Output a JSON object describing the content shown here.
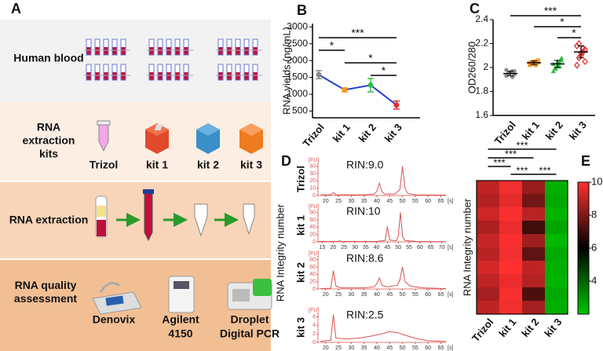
{
  "panel_labels": [
    "A",
    "B",
    "C",
    "D",
    "E"
  ],
  "workflow": {
    "rows": [
      {
        "label_lines": [
          "Human blood"
        ]
      },
      {
        "label_lines": [
          "RNA",
          "extraction",
          "kits"
        ],
        "items": [
          [
            "Trizol"
          ],
          [
            "kit 1"
          ],
          [
            "kit 2"
          ],
          [
            "kit 3"
          ]
        ]
      },
      {
        "label_lines": [
          "RNA extraction"
        ]
      },
      {
        "label_lines": [
          "RNA quality",
          "assessment"
        ],
        "items": [
          [
            "Denovix"
          ],
          [
            "Agilent",
            "4150"
          ],
          [
            "Droplet",
            "Digital PCR"
          ]
        ]
      }
    ]
  },
  "chart_data": [
    {
      "type": "line",
      "ylabel": "RNA yields (ng/mL)",
      "categories": [
        "Trizol",
        "kit 1",
        "kit 2",
        "kit 3"
      ],
      "values": [
        1580,
        1130,
        1270,
        680
      ],
      "errors": [
        120,
        60,
        200,
        120
      ],
      "color": "#1f3fd0",
      "point_colors": [
        "#8a8a8a",
        "#f39a1e",
        "#2ec040",
        "#e03030"
      ],
      "ylim": [
        300,
        3100
      ],
      "yticks": [
        500,
        1000,
        1500,
        2000,
        2500,
        3000
      ],
      "significance": [
        {
          "pair": [
            0,
            3
          ],
          "label": "***"
        },
        {
          "pair": [
            0,
            1
          ],
          "label": "*"
        },
        {
          "pair": [
            1,
            3
          ],
          "label": "*"
        },
        {
          "pair": [
            2,
            3
          ],
          "label": "*"
        }
      ]
    },
    {
      "type": "strip",
      "ylabel": "OD260/280",
      "categories": [
        "Trizol",
        "kit 1",
        "kit 2",
        "kit 3"
      ],
      "values": [
        [
          1.93,
          1.95,
          1.96,
          1.97,
          1.94,
          1.98,
          1.95,
          1.96,
          1.92,
          1.97
        ],
        [
          2.02,
          2.04,
          2.05,
          2.03,
          2.06,
          2.04,
          2.03,
          2.05,
          2.02,
          2.04
        ],
        [
          1.97,
          2.0,
          2.02,
          2.04,
          2.06,
          2.03,
          1.99,
          2.05,
          2.01,
          2.08
        ],
        [
          2.02,
          2.08,
          2.1,
          2.13,
          2.15,
          2.18,
          2.2,
          2.12,
          2.16,
          2.05
        ]
      ],
      "means": [
        1.95,
        2.04,
        2.03,
        2.13
      ],
      "sds": [
        0.02,
        0.015,
        0.03,
        0.05
      ],
      "colors": [
        "#8a8a8a",
        "#f39a1e",
        "#2ec040",
        "#e03030"
      ],
      "markers": [
        "circle",
        "square",
        "triangle",
        "diamond"
      ],
      "ylim": [
        1.6,
        2.4
      ],
      "yticks": [
        1.6,
        1.8,
        2.0,
        2.2,
        2.4
      ],
      "significance": [
        {
          "pair": [
            0,
            3
          ],
          "label": "***"
        },
        {
          "pair": [
            1,
            3
          ],
          "label": "*"
        },
        {
          "pair": [
            2,
            3
          ],
          "label": "*"
        }
      ]
    },
    {
      "type": "electropherogram",
      "ylabel": "RNA Integrity number",
      "y_unit": "[FU]",
      "x_unit": "[s]",
      "color": "#d9534f",
      "panels": [
        {
          "name": "Trizol",
          "rin": "RIN:9.0",
          "xlim": [
            17,
            67
          ],
          "ylim": [
            0,
            45
          ],
          "xticks": [
            20,
            25,
            30,
            35,
            40,
            45,
            50,
            55,
            60,
            65
          ],
          "yticks": [
            0,
            10,
            20,
            30,
            40
          ],
          "x": [
            18,
            22,
            23,
            24,
            35,
            39,
            40,
            41,
            42,
            43,
            47,
            49,
            50,
            51,
            52,
            55,
            67
          ],
          "values": [
            1,
            1,
            4,
            1,
            1,
            2,
            6,
            17,
            5,
            2,
            2,
            8,
            40,
            10,
            3,
            1,
            0.5
          ]
        },
        {
          "name": "kit 1",
          "rin": "RIN:10",
          "xlim": [
            13,
            72
          ],
          "ylim": [
            0,
            90
          ],
          "xticks": [
            15,
            20,
            25,
            30,
            35,
            40,
            45,
            50,
            55,
            60,
            65,
            70
          ],
          "yticks": [
            0,
            20,
            40,
            60,
            80
          ],
          "x": [
            13,
            22,
            23,
            24,
            40,
            44,
            45,
            46,
            49,
            50,
            51,
            52,
            53,
            58,
            72
          ],
          "values": [
            1,
            1,
            3,
            1,
            1,
            4,
            42,
            5,
            3,
            15,
            80,
            15,
            4,
            1,
            0.5
          ]
        },
        {
          "name": "kit 2",
          "rin": "RIN:8.6",
          "xlim": [
            17,
            67
          ],
          "ylim": [
            0,
            90
          ],
          "xticks": [
            20,
            25,
            30,
            35,
            40,
            45,
            50,
            55,
            60,
            65
          ],
          "yticks": [
            0,
            20,
            40,
            60,
            80
          ],
          "x": [
            18,
            22,
            23,
            24,
            26,
            35,
            39,
            40,
            41,
            42,
            44,
            48,
            49,
            50,
            51,
            53,
            58,
            67
          ],
          "values": [
            1,
            2,
            50,
            8,
            3,
            3,
            6,
            15,
            30,
            10,
            6,
            10,
            25,
            60,
            20,
            8,
            3,
            1
          ]
        },
        {
          "name": "kit 3",
          "rin": "RIN:2.5",
          "xlim": [
            17,
            67
          ],
          "ylim": [
            0,
            7
          ],
          "xticks": [
            20,
            25,
            30,
            35,
            40,
            45,
            50,
            55,
            60,
            65
          ],
          "yticks": [
            0,
            2,
            4,
            6
          ],
          "x": [
            18,
            22,
            23,
            24,
            28,
            33,
            38,
            42,
            45,
            48,
            52,
            56,
            60,
            67
          ],
          "values": [
            0.2,
            0.5,
            6.5,
            1,
            0.8,
            1,
            1.5,
            2,
            2.5,
            2.3,
            1.5,
            0.8,
            0.4,
            0.2
          ]
        }
      ]
    },
    {
      "type": "heatmap",
      "ylabel": "RNA Integrity number",
      "categories": [
        "Trizol",
        "kit 1",
        "kit 2",
        "kit 3"
      ],
      "values": [
        [
          9.0,
          9.8,
          8.4,
          2.5
        ],
        [
          8.8,
          9.6,
          7.8,
          2.6
        ],
        [
          9.2,
          9.9,
          8.9,
          2.4
        ],
        [
          8.7,
          9.7,
          7.0,
          2.7
        ],
        [
          9.1,
          9.9,
          8.5,
          2.3
        ],
        [
          8.9,
          9.8,
          7.5,
          2.6
        ],
        [
          9.3,
          10,
          9.0,
          2.5
        ],
        [
          9.0,
          9.7,
          8.8,
          2.4
        ],
        [
          8.6,
          9.9,
          7.2,
          2.6
        ],
        [
          9.0,
          9.8,
          8.6,
          2.5
        ]
      ],
      "clim": [
        2,
        10
      ],
      "cmid": 6,
      "cticks": [
        4,
        6,
        8,
        10
      ],
      "colors": [
        "#00c800",
        "#000000",
        "#ff3030"
      ],
      "significance": [
        {
          "pair": [
            0,
            3
          ],
          "label": "***"
        },
        {
          "pair": [
            0,
            2
          ],
          "label": "***"
        },
        {
          "pair": [
            0,
            1
          ],
          "label": "***"
        },
        {
          "pair": [
            1,
            2
          ],
          "label": "***"
        },
        {
          "pair": [
            2,
            3
          ],
          "label": "***"
        }
      ]
    }
  ]
}
